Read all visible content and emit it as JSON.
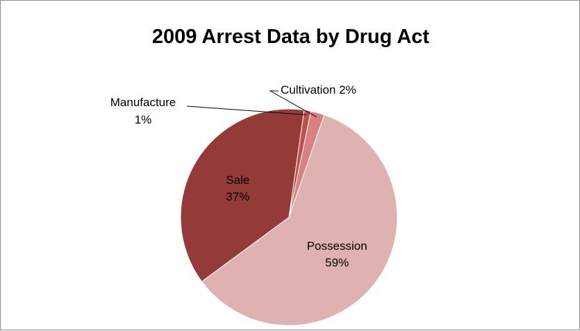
{
  "chart_data": {
    "type": "pie",
    "title": "2009 Arrest Data by Drug Act",
    "slices": [
      {
        "label": "Possession",
        "value": 59,
        "percent_label": "59%",
        "color": "#dfb2b1"
      },
      {
        "label": "Sale",
        "value": 37,
        "percent_label": "37%",
        "color": "#943a38"
      },
      {
        "label": "Manufacture",
        "value": 1,
        "percent_label": "1%",
        "color": "#c0504d"
      },
      {
        "label": "Cultivation",
        "value": 2,
        "percent_label": "2%",
        "color": "#d78280"
      }
    ],
    "legend": "none"
  }
}
